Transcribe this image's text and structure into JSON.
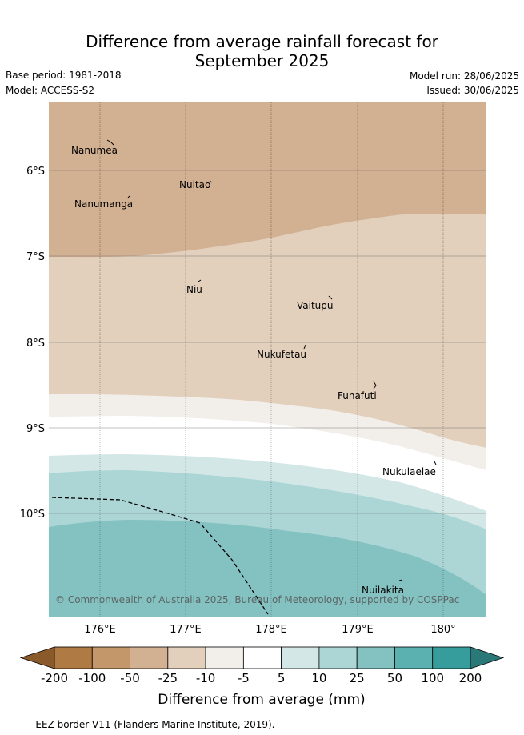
{
  "title": {
    "line1": "Difference from average rainfall forecast for",
    "line2": "September 2025"
  },
  "meta": {
    "base_period": "Base period: 1981-2018",
    "model": "Model: ACCESS-S2",
    "model_run": "Model run: 28/06/2025",
    "issued": "Issued: 30/06/2025"
  },
  "map": {
    "lat_labels": [
      "6°S",
      "7°S",
      "8°S",
      "9°S",
      "10°S"
    ],
    "lon_labels": [
      "176°E",
      "177°E",
      "178°E",
      "179°E",
      "180°"
    ],
    "places": [
      "Nanumea",
      "Nuitao",
      "Nanumanga",
      "Niu",
      "Vaitupu",
      "Nukufetau",
      "Funafuti",
      "Nukulaelae",
      "Nuilakita"
    ],
    "copyright": "© Commonwealth of Australia 2025, Bureau of Meteorology, supported by COSPPac",
    "shaded_categories": [
      "-25 to -50",
      "-10 to -25",
      "-5 to -10",
      "-5 to 5",
      "5 to 10",
      "10 to 25",
      "25 to 50"
    ]
  },
  "legend": {
    "tick_labels": [
      "-200",
      "-100",
      "-50",
      "-25",
      "-10",
      "-5",
      "5",
      "10",
      "25",
      "50",
      "100",
      "200"
    ],
    "colors": [
      "#8b5a2b",
      "#b07a44",
      "#c4976b",
      "#d2b092",
      "#e2cfbc",
      "#f2eeea",
      "#ffffff",
      "#d4e7e7",
      "#acd6d6",
      "#84c2c1",
      "#5bb0b0",
      "#369c9c",
      "#2b7878"
    ],
    "label": "Difference from average (mm)"
  },
  "footnote": "-- -- -- EEZ border V11 (Flanders Marine Institute, 2019)."
}
